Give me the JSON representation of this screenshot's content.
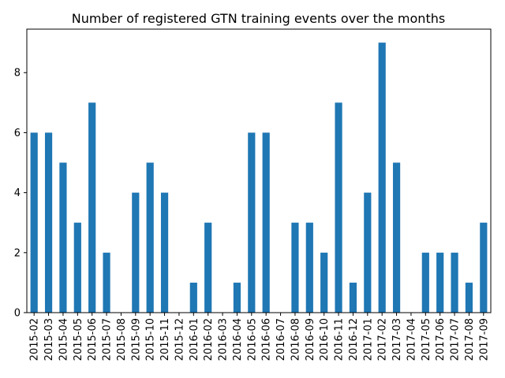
{
  "chart_data": {
    "type": "bar",
    "title": "Number of registered GTN training events over the months",
    "xlabel": "",
    "ylabel": "",
    "categories": [
      "2015-02",
      "2015-03",
      "2015-04",
      "2015-05",
      "2015-06",
      "2015-07",
      "2015-08",
      "2015-09",
      "2015-10",
      "2015-11",
      "2015-12",
      "2016-01",
      "2016-02",
      "2016-03",
      "2016-04",
      "2016-05",
      "2016-06",
      "2016-07",
      "2016-08",
      "2016-09",
      "2016-10",
      "2016-11",
      "2016-12",
      "2017-01",
      "2017-02",
      "2017-03",
      "2017-04",
      "2017-05",
      "2017-06",
      "2017-07",
      "2017-08",
      "2017-09"
    ],
    "values": [
      6,
      6,
      5,
      3,
      7,
      2,
      0,
      4,
      5,
      4,
      0,
      1,
      3,
      0,
      1,
      6,
      6,
      0,
      3,
      3,
      2,
      7,
      1,
      4,
      9,
      5,
      0,
      2,
      2,
      2,
      1,
      3
    ],
    "ylim": [
      0,
      9.45
    ],
    "yticks": [
      0,
      2,
      4,
      6,
      8
    ],
    "grid": false,
    "legend": "none",
    "bar_color": "#1f77b4"
  }
}
